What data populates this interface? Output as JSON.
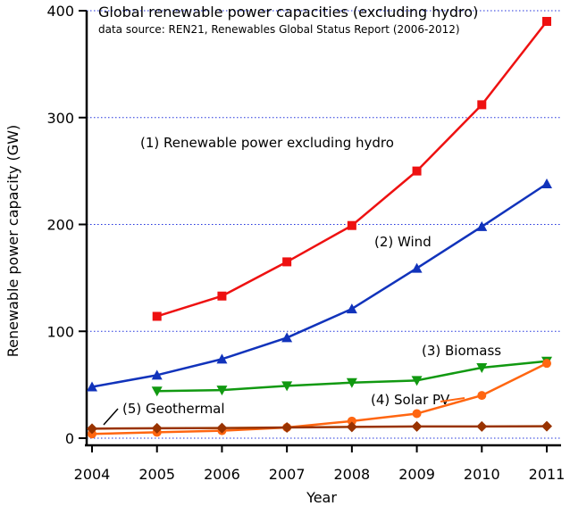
{
  "chart_data": {
    "type": "line",
    "title": "Global renewable power capacities (excluding hydro)",
    "subtitle": "data source: REN21, Renewables Global Status Report (2006-2012)",
    "xlabel": "Year",
    "ylabel": "Renewable power capacity (GW)",
    "x": [
      2004,
      2005,
      2006,
      2007,
      2008,
      2009,
      2010,
      2011
    ],
    "xlim": [
      2004,
      2011
    ],
    "ylim": [
      0,
      400
    ],
    "yticks": [
      0,
      100,
      200,
      300,
      400
    ],
    "grid": "horizontal-dotted",
    "series": [
      {
        "name": "(1) Renewable power excluding hydro",
        "color": "#ee1111",
        "marker": "square",
        "points": [
          [
            2005,
            114
          ],
          [
            2006,
            133
          ],
          [
            2007,
            165
          ],
          [
            2008,
            199
          ],
          [
            2009,
            250
          ],
          [
            2010,
            312
          ],
          [
            2011,
            390
          ]
        ]
      },
      {
        "name": "(2) Wind",
        "color": "#1133bb",
        "marker": "triangle-up",
        "points": [
          [
            2004,
            48
          ],
          [
            2005,
            59
          ],
          [
            2006,
            74
          ],
          [
            2007,
            94
          ],
          [
            2008,
            121
          ],
          [
            2009,
            159
          ],
          [
            2010,
            198
          ],
          [
            2011,
            238
          ]
        ]
      },
      {
        "name": "(3) Biomass",
        "color": "#119911",
        "marker": "triangle-down",
        "points": [
          [
            2005,
            44
          ],
          [
            2006,
            45
          ],
          [
            2007,
            49
          ],
          [
            2008,
            52
          ],
          [
            2009,
            54
          ],
          [
            2010,
            66
          ],
          [
            2011,
            72
          ]
        ]
      },
      {
        "name": "(4) Solar PV",
        "color": "#ff6611",
        "marker": "circle",
        "points": [
          [
            2004,
            4
          ],
          [
            2005,
            5.5
          ],
          [
            2006,
            7
          ],
          [
            2007,
            10
          ],
          [
            2008,
            16
          ],
          [
            2009,
            23
          ],
          [
            2010,
            40
          ],
          [
            2011,
            70
          ]
        ]
      },
      {
        "name": "(5) Geothermal",
        "color": "#993300",
        "marker": "diamond",
        "points": [
          [
            2004,
            8.9
          ],
          [
            2005,
            9.3
          ],
          [
            2006,
            9.5
          ],
          [
            2007,
            10
          ],
          [
            2008,
            10.5
          ],
          [
            2009,
            11
          ],
          [
            2010,
            11
          ],
          [
            2011,
            11.2
          ]
        ]
      }
    ]
  }
}
